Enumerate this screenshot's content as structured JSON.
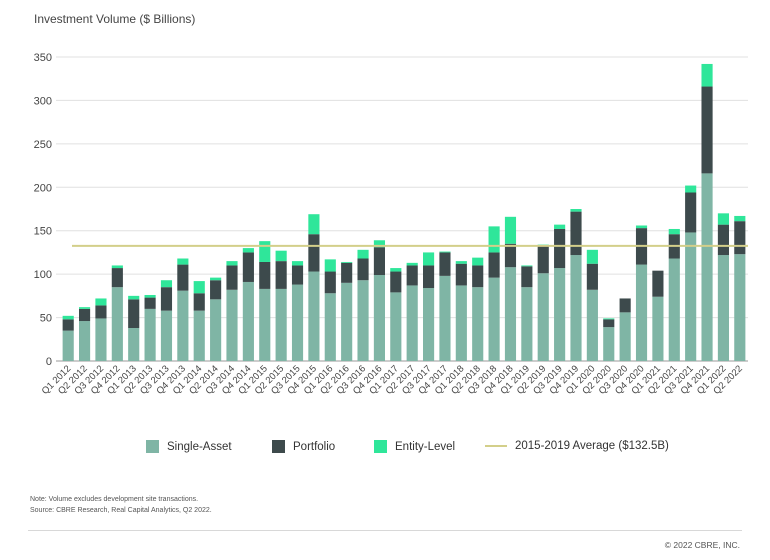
{
  "header": {
    "title": "Investment Volume ($ Billions)"
  },
  "colors": {
    "single_asset": "#7fb5a5",
    "portfolio": "#3d4a4c",
    "entity_level": "#2fe69a",
    "average": "#d3cf8a",
    "grid": "#e0e0e0"
  },
  "chart_data": {
    "type": "bar",
    "stacked": true,
    "title": "Investment Volume ($ Billions)",
    "ylim": [
      0,
      350
    ],
    "yticks": [
      0,
      50,
      100,
      150,
      200,
      250,
      300,
      350
    ],
    "grid": true,
    "legend_position": "bottom",
    "categories": [
      "Q1 2012",
      "Q2 2012",
      "Q3 2012",
      "Q4 2012",
      "Q1 2013",
      "Q2 2013",
      "Q3 2013",
      "Q4 2013",
      "Q1 2014",
      "Q2 2014",
      "Q3 2014",
      "Q4 2014",
      "Q1 2015",
      "Q2 2015",
      "Q3 2015",
      "Q4 2015",
      "Q1 2016",
      "Q2 2016",
      "Q3 2016",
      "Q4 2016",
      "Q1 2017",
      "Q2 2017",
      "Q3 2017",
      "Q4 2017",
      "Q1 2018",
      "Q2 2018",
      "Q3 2018",
      "Q4 2018",
      "Q1 2019",
      "Q2 2019",
      "Q3 2019",
      "Q4 2019",
      "Q1 2020",
      "Q2 2020",
      "Q3 2020",
      "Q4 2020",
      "Q1 2021",
      "Q2 2021",
      "Q3 2021",
      "Q4 2021",
      "Q1 2022",
      "Q2 2022"
    ],
    "series": [
      {
        "name": "Single-Asset",
        "values": [
          35,
          46,
          49,
          85,
          38,
          60,
          58,
          81,
          58,
          71,
          82,
          91,
          83,
          83,
          88,
          103,
          78,
          90,
          93,
          99,
          79,
          87,
          84,
          98,
          87,
          85,
          96,
          108,
          85,
          101,
          107,
          122,
          82,
          39,
          56,
          111,
          74,
          118,
          148,
          216,
          122,
          123
        ]
      },
      {
        "name": "Portfolio",
        "values": [
          13,
          14,
          15,
          22,
          33,
          13,
          27,
          30,
          20,
          22,
          28,
          34,
          31,
          32,
          22,
          43,
          25,
          23,
          25,
          32,
          24,
          23,
          26,
          27,
          25,
          25,
          29,
          27,
          24,
          32,
          45,
          50,
          30,
          9,
          16,
          42,
          30,
          28,
          46,
          100,
          35,
          38
        ]
      },
      {
        "name": "Entity-Level",
        "values": [
          4,
          2,
          8,
          3,
          4,
          3,
          8,
          7,
          14,
          3,
          5,
          5,
          24,
          12,
          5,
          23,
          14,
          1,
          10,
          8,
          4,
          3,
          15,
          1,
          3,
          9,
          30,
          31,
          1,
          1,
          5,
          3,
          16,
          1,
          0,
          3,
          0,
          6,
          8,
          26,
          13,
          6
        ]
      }
    ],
    "reference_line": {
      "name": "2015-2019 Average ($132.5B)",
      "value": 132.5
    },
    "legend": [
      "Single-Asset",
      "Portfolio",
      "Entity-Level",
      "2015-2019 Average ($132.5B)"
    ]
  },
  "footer": {
    "note_line1": "Note: Volume excludes development site transactions.",
    "note_line2": "Source: CBRE Research, Real Capital Analytics, Q2 2022.",
    "copyright": "© 2022 CBRE, INC."
  }
}
